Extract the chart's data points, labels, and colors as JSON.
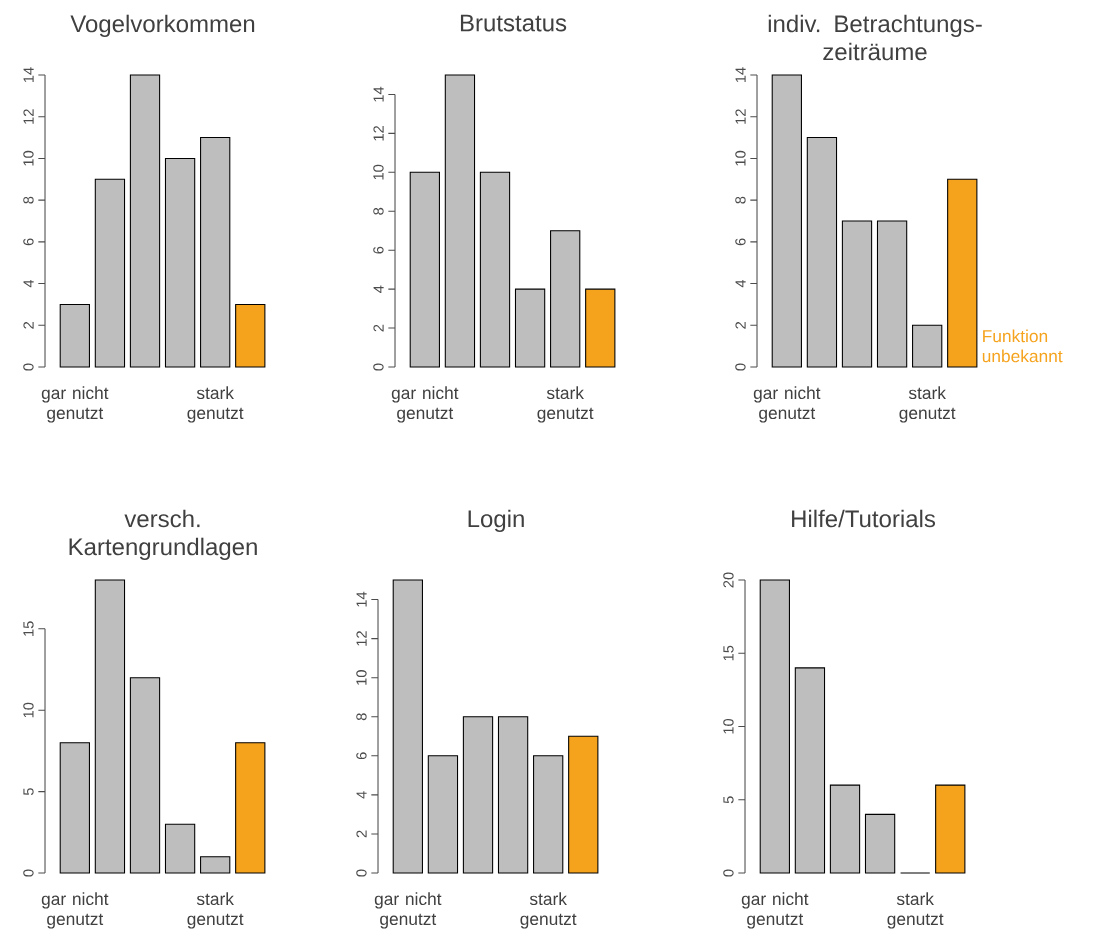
{
  "chart_data": [
    {
      "type": "bar",
      "title": "Vogelvorkommen",
      "categories": [
        "gar nicht genutzt",
        null,
        null,
        null,
        "stark genutzt",
        null
      ],
      "values": [
        3,
        9,
        14,
        10,
        11,
        3
      ],
      "colors": [
        "#bebebe",
        "#bebebe",
        "#bebebe",
        "#bebebe",
        "#bebebe",
        "#f5a21c"
      ],
      "ylim": [
        0,
        14
      ],
      "yticks": [
        0,
        2,
        4,
        6,
        8,
        10,
        12,
        14
      ]
    },
    {
      "type": "bar",
      "title": "Brutstatus",
      "categories": [
        "gar nicht genutzt",
        null,
        null,
        null,
        "stark genutzt",
        null
      ],
      "values": [
        10,
        15,
        10,
        4,
        7,
        4
      ],
      "colors": [
        "#bebebe",
        "#bebebe",
        "#bebebe",
        "#bebebe",
        "#bebebe",
        "#f5a21c"
      ],
      "ylim": [
        0,
        15
      ],
      "yticks": [
        0,
        2,
        4,
        6,
        8,
        10,
        12,
        14
      ]
    },
    {
      "type": "bar",
      "title": "indiv. Betrachtungs-zeiträume",
      "categories": [
        "gar nicht genutzt",
        null,
        null,
        null,
        "stark genutzt",
        null
      ],
      "values": [
        14,
        11,
        7,
        7,
        2,
        9
      ],
      "colors": [
        "#bebebe",
        "#bebebe",
        "#bebebe",
        "#bebebe",
        "#bebebe",
        "#f5a21c"
      ],
      "ylim": [
        0,
        14
      ],
      "yticks": [
        0,
        2,
        4,
        6,
        8,
        10,
        12,
        14
      ],
      "annotations": [
        "Funktion unbekannt"
      ]
    },
    {
      "type": "bar",
      "title": "versch. Kartengrundlagen",
      "categories": [
        "gar nicht genutzt",
        null,
        null,
        null,
        "stark genutzt",
        null
      ],
      "values": [
        8,
        18,
        12,
        3,
        1,
        8
      ],
      "colors": [
        "#bebebe",
        "#bebebe",
        "#bebebe",
        "#bebebe",
        "#bebebe",
        "#f5a21c"
      ],
      "ylim": [
        0,
        18
      ],
      "yticks": [
        0,
        5,
        10,
        15
      ]
    },
    {
      "type": "bar",
      "title": "Login",
      "categories": [
        "gar nicht genutzt",
        null,
        null,
        null,
        "stark genutzt",
        null
      ],
      "values": [
        15,
        6,
        8,
        8,
        6,
        7
      ],
      "colors": [
        "#bebebe",
        "#bebebe",
        "#bebebe",
        "#bebebe",
        "#bebebe",
        "#f5a21c"
      ],
      "ylim": [
        0,
        15
      ],
      "yticks": [
        0,
        2,
        4,
        6,
        8,
        10,
        12,
        14
      ]
    },
    {
      "type": "bar",
      "title": "Hilfe/Tutorials",
      "categories": [
        "gar nicht genutzt",
        null,
        null,
        null,
        "stark genutzt",
        null
      ],
      "values": [
        20,
        14,
        6,
        4,
        0,
        6
      ],
      "colors": [
        "#bebebe",
        "#bebebe",
        "#bebebe",
        "#bebebe",
        "#bebebe",
        "#f5a21c"
      ],
      "ylim": [
        0,
        20
      ],
      "yticks": [
        0,
        5,
        10,
        15,
        20
      ]
    }
  ]
}
